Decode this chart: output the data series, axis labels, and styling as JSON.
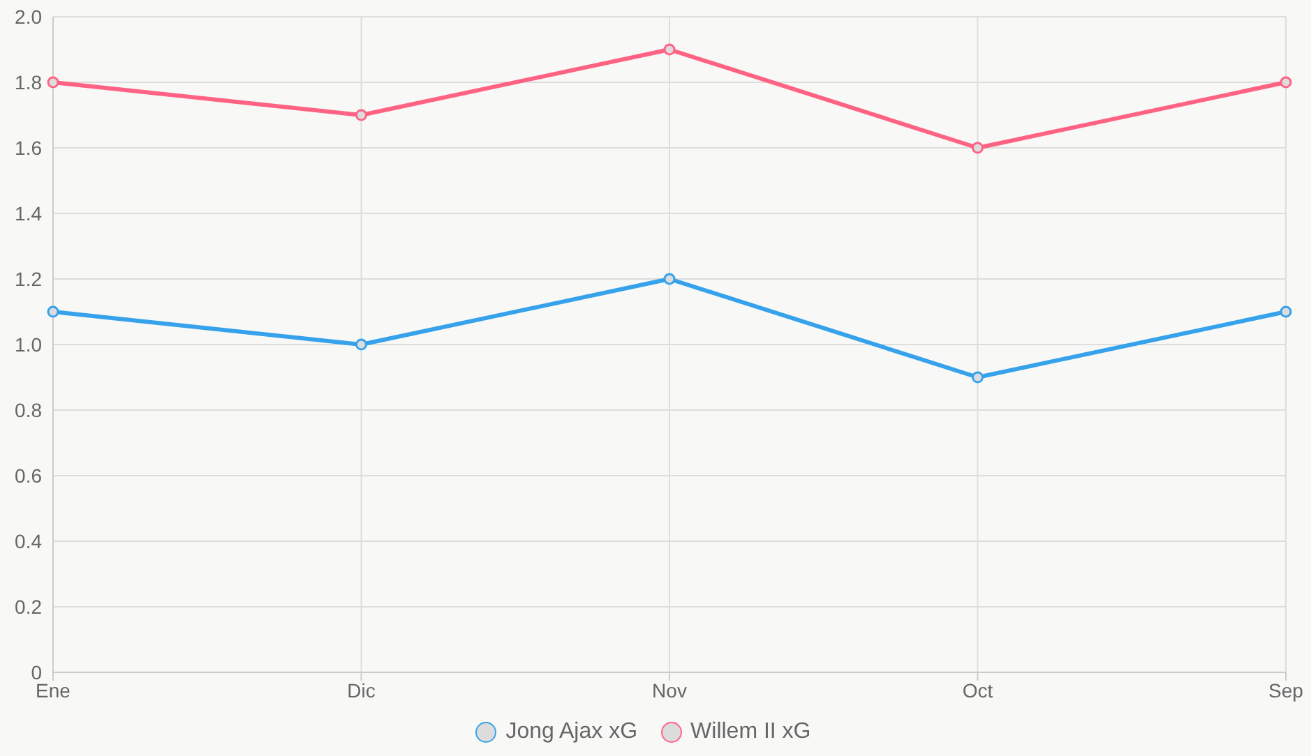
{
  "chart_data": {
    "type": "line",
    "categories": [
      "Ene",
      "Dic",
      "Nov",
      "Oct",
      "Sep"
    ],
    "series": [
      {
        "name": "Jong Ajax xG",
        "color": "#36a2eb",
        "values": [
          1.1,
          1.0,
          1.2,
          0.9,
          1.1
        ]
      },
      {
        "name": "Willem II xG",
        "color": "#ff6384",
        "values": [
          1.8,
          1.7,
          1.9,
          1.6,
          1.8
        ]
      }
    ],
    "ylim": [
      0,
      2
    ],
    "yticks": [
      0,
      0.2,
      0.4,
      0.6,
      0.8,
      {
        "value": 1,
        "label": "1.0"
      },
      1.2,
      1.4,
      1.6,
      1.8,
      {
        "value": 2,
        "label": "2.0"
      }
    ],
    "grid": true,
    "legend": "bottom",
    "marker": "circle",
    "line_style": "solid"
  }
}
